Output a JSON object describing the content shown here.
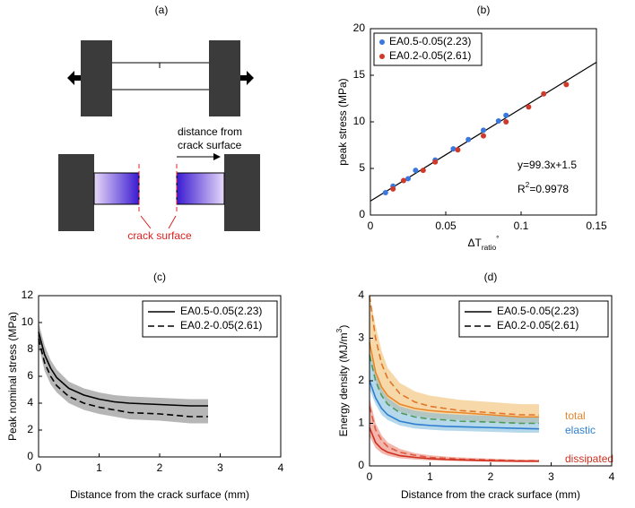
{
  "diagram": {
    "label": "(a)",
    "annotation_lines": [
      "distance from",
      "crack surface"
    ],
    "crack_label": "crack surface"
  },
  "chart_data": [
    {
      "type": "scatter",
      "title": "(b)",
      "xlabel": [
        {
          "text": "ΔT",
          "pos": "base"
        },
        {
          "text": "ratio",
          "pos": "sub"
        },
        {
          "text": "°",
          "pos": "sup"
        }
      ],
      "ylabel": "peak stress (MPa)",
      "xlim": [
        0,
        0.15
      ],
      "xticks": [
        0,
        0.05,
        0.1,
        0.15
      ],
      "ylim": [
        0,
        20
      ],
      "yticks": [
        0,
        5,
        10,
        15,
        20
      ],
      "series": [
        {
          "name": "EA0.5-0.05(2.23)",
          "color": "#3a78e0",
          "x": [
            0.01,
            0.015,
            0.025,
            0.03,
            0.043,
            0.055,
            0.065,
            0.075,
            0.085,
            0.09
          ],
          "values": [
            2.4,
            3.1,
            3.9,
            4.8,
            5.9,
            7.1,
            8.1,
            9.1,
            10.1,
            10.7
          ]
        },
        {
          "name": "EA0.2-0.05(2.61)",
          "color": "#d03a2a",
          "x": [
            0.015,
            0.022,
            0.035,
            0.043,
            0.058,
            0.075,
            0.09,
            0.105,
            0.115,
            0.13
          ],
          "values": [
            2.8,
            3.7,
            4.8,
            5.7,
            7.0,
            8.5,
            10.0,
            11.6,
            13.0,
            14.0
          ]
        }
      ],
      "fit": {
        "x": [
          0,
          0.15
        ],
        "values": [
          1.5,
          16.395
        ],
        "color": "#000000"
      },
      "equation": "y=99.3x+1.5",
      "r_squared": [
        {
          "text": "R",
          "pos": "base"
        },
        {
          "text": "2",
          "pos": "sup"
        },
        {
          "text": "=0.9978",
          "pos": "base"
        }
      ]
    },
    {
      "type": "line",
      "title": "(c)",
      "xlabel": "Distance from the crack surface (mm)",
      "ylabel": "Peak nominal stress (MPa)",
      "xlim": [
        0,
        4
      ],
      "xticks": [
        0,
        1,
        2,
        3,
        4
      ],
      "ylim": [
        0,
        12
      ],
      "yticks": [
        0,
        2,
        4,
        6,
        8,
        10,
        12
      ],
      "x": [
        0,
        0.1,
        0.2,
        0.3,
        0.5,
        0.75,
        1,
        1.25,
        1.5,
        2,
        2.5,
        2.8
      ],
      "legend": [
        {
          "name": "EA0.5-0.05(2.23)",
          "dash": false
        },
        {
          "name": "EA0.2-0.05(2.61)",
          "dash": true
        }
      ],
      "series": [
        {
          "color": "#000000",
          "dashed_color": "#000000",
          "solid": [
            9.3,
            7.6,
            6.6,
            5.9,
            5.1,
            4.6,
            4.3,
            4.1,
            4.0,
            3.9,
            3.8,
            3.8
          ],
          "dashed": [
            8.8,
            7.0,
            6.0,
            5.3,
            4.5,
            4.0,
            3.7,
            3.5,
            3.3,
            3.2,
            3.0,
            3.0
          ],
          "band": {
            "color": "#7a7a7a",
            "lower": [
              8.3,
              6.4,
              5.4,
              4.8,
              4.0,
              3.5,
              3.2,
              3.0,
              2.8,
              2.7,
              2.5,
              2.5
            ],
            "upper": [
              10.0,
              8.3,
              7.2,
              6.5,
              5.6,
              5.1,
              4.8,
              4.6,
              4.5,
              4.4,
              4.3,
              4.3
            ]
          }
        }
      ]
    },
    {
      "type": "line",
      "title": "(d)",
      "xlabel": "Distance from the crack surface (mm)",
      "ylabel": [
        {
          "text": "Energy density (MJ/m",
          "pos": "base"
        },
        {
          "text": "3",
          "pos": "sup"
        },
        {
          "text": ")",
          "pos": "base"
        }
      ],
      "xlim": [
        0,
        4
      ],
      "xticks": [
        0,
        1,
        2,
        3,
        4
      ],
      "ylim": [
        0,
        4
      ],
      "yticks": [
        0,
        1,
        2,
        3,
        4
      ],
      "x": [
        0,
        0.1,
        0.2,
        0.3,
        0.5,
        0.75,
        1,
        1.25,
        1.5,
        2,
        2.5,
        2.8
      ],
      "legend": [
        {
          "name": "EA0.5-0.05(2.23)",
          "dash": false
        },
        {
          "name": "EA0.2-0.05(2.61)",
          "dash": true
        }
      ],
      "series": [
        {
          "label": "total",
          "color": "#e8862a",
          "dashed_color": "#e0762a",
          "solid": [
            2.9,
            2.2,
            1.85,
            1.65,
            1.45,
            1.35,
            1.3,
            1.27,
            1.25,
            1.2,
            1.15,
            1.15
          ],
          "dashed": [
            4.0,
            3.0,
            2.4,
            2.05,
            1.7,
            1.5,
            1.4,
            1.35,
            1.3,
            1.25,
            1.2,
            1.2
          ],
          "band": {
            "color": "#f0b860",
            "lower": [
              2.6,
              2.0,
              1.65,
              1.45,
              1.28,
              1.18,
              1.12,
              1.1,
              1.08,
              1.03,
              1.0,
              1.0
            ],
            "upper": [
              4.0,
              3.3,
              2.7,
              2.3,
              1.95,
              1.75,
              1.65,
              1.6,
              1.55,
              1.5,
              1.45,
              1.45
            ]
          }
        },
        {
          "label": "elastic",
          "color": "#2f7fd0",
          "dashed_color": "#4e9a5a",
          "solid": [
            2.0,
            1.6,
            1.35,
            1.2,
            1.05,
            0.98,
            0.95,
            0.93,
            0.92,
            0.9,
            0.88,
            0.87
          ],
          "dashed": [
            2.6,
            2.0,
            1.65,
            1.45,
            1.25,
            1.15,
            1.1,
            1.08,
            1.05,
            1.03,
            1.0,
            1.0
          ],
          "band": {
            "color": "#78b8d8",
            "lower": [
              1.8,
              1.45,
              1.2,
              1.08,
              0.95,
              0.88,
              0.85,
              0.83,
              0.82,
              0.8,
              0.78,
              0.78
            ],
            "upper": [
              2.7,
              2.15,
              1.8,
              1.6,
              1.4,
              1.3,
              1.25,
              1.22,
              1.2,
              1.18,
              1.15,
              1.15
            ]
          }
        },
        {
          "label": "dissipated",
          "color": "#d03020",
          "dashed_color": "#e05a40",
          "solid": [
            0.9,
            0.55,
            0.4,
            0.32,
            0.24,
            0.2,
            0.17,
            0.15,
            0.14,
            0.12,
            0.11,
            0.11
          ],
          "dashed": [
            1.4,
            0.85,
            0.6,
            0.45,
            0.32,
            0.25,
            0.2,
            0.18,
            0.16,
            0.14,
            0.12,
            0.12
          ],
          "band": {
            "color": "#e87a6a",
            "lower": [
              0.7,
              0.42,
              0.3,
              0.24,
              0.18,
              0.15,
              0.13,
              0.12,
              0.11,
              0.1,
              0.09,
              0.09
            ],
            "upper": [
              1.6,
              1.0,
              0.72,
              0.55,
              0.4,
              0.3,
              0.25,
              0.22,
              0.2,
              0.17,
              0.15,
              0.15
            ]
          }
        }
      ]
    }
  ]
}
